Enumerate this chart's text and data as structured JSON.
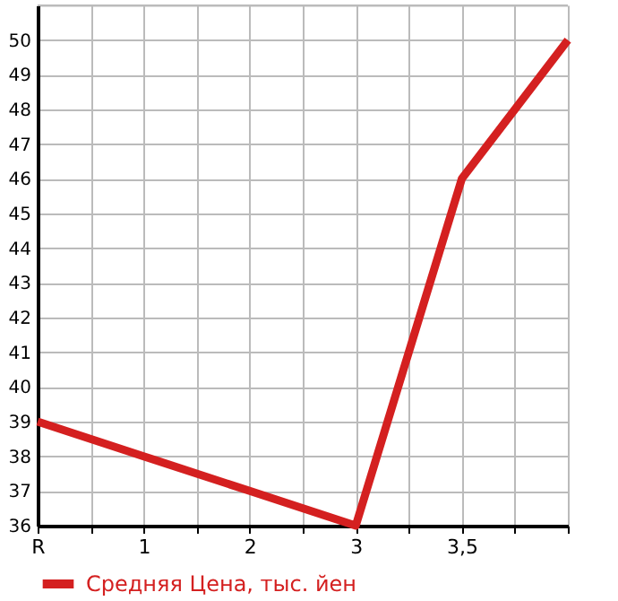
{
  "chart_data": {
    "type": "line",
    "categories": [
      "R",
      "1",
      "2",
      "3",
      "3,5",
      null
    ],
    "series": [
      {
        "name": "Средняя Цена, тыс. йен",
        "color": "#d42020",
        "values": [
          39,
          38,
          37,
          36,
          46,
          50
        ]
      }
    ],
    "ylim": [
      36,
      51
    ],
    "yticks": [
      36,
      37,
      38,
      39,
      40,
      41,
      42,
      43,
      44,
      45,
      46,
      47,
      48,
      49,
      50
    ],
    "grid": true,
    "legend": "bottom left",
    "marker": "none",
    "line_style": "solid"
  }
}
